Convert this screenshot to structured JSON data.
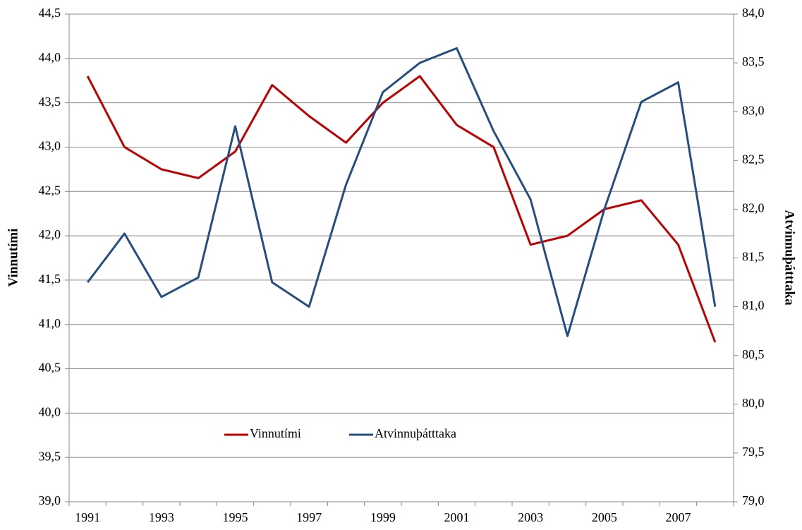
{
  "chart_data": {
    "type": "line",
    "y_label": "Vinnutími",
    "y2_label": "Atvinnuþátttaka",
    "categories": [
      "1991",
      null,
      "1993",
      null,
      "1995",
      null,
      "1997",
      null,
      "1999",
      null,
      "2001",
      null,
      "2003",
      null,
      "2005",
      null,
      "2007",
      null
    ],
    "series": [
      {
        "name": "Vinnutími",
        "color": "#c00000",
        "values": [
          43.8,
          43.0,
          42.75,
          42.65,
          42.95,
          43.7,
          43.35,
          43.05,
          43.5,
          43.8,
          43.25,
          43.0,
          41.9,
          42.0,
          42.3,
          42.4,
          41.9,
          40.8
        ]
      },
      {
        "name": "Atvinnuþátttaka",
        "color": "#254e82",
        "axis": "y2",
        "values": [
          81.25,
          81.75,
          81.1,
          81.3,
          82.85,
          81.25,
          81.0,
          82.25,
          83.2,
          83.5,
          83.65,
          82.8,
          82.1,
          80.7,
          82.0,
          83.1,
          83.3,
          81.0
        ]
      }
    ],
    "ylim": [
      39.0,
      44.5
    ],
    "yticks": [
      {
        "value": 39.0,
        "label": "39,0"
      },
      {
        "value": 39.5,
        "label": "39,5"
      },
      {
        "value": 40.0,
        "label": "40,0"
      },
      {
        "value": 40.5,
        "label": "40,5"
      },
      {
        "value": 41.0,
        "label": "41,0"
      },
      {
        "value": 41.5,
        "label": "41,5"
      },
      {
        "value": 42.0,
        "label": "42,0"
      },
      {
        "value": 42.5,
        "label": "42,5"
      },
      {
        "value": 43.0,
        "label": "43,0"
      },
      {
        "value": 43.5,
        "label": "43,5"
      },
      {
        "value": 44.0,
        "label": "44,0"
      },
      {
        "value": 44.5,
        "label": "44,5"
      }
    ],
    "y2lim": [
      79.0,
      84.0
    ],
    "y2ticks": [
      {
        "value": 79.0,
        "label": "79,0"
      },
      {
        "value": 79.5,
        "label": "79,5"
      },
      {
        "value": 80.0,
        "label": "80,0"
      },
      {
        "value": 80.5,
        "label": "80,5"
      },
      {
        "value": 81.0,
        "label": "81,0"
      },
      {
        "value": 81.5,
        "label": "81,5"
      },
      {
        "value": 82.0,
        "label": "82,0"
      },
      {
        "value": 82.5,
        "label": "82,5"
      },
      {
        "value": 83.0,
        "label": "83,0"
      },
      {
        "value": 83.5,
        "label": "83,5"
      },
      {
        "value": 84.0,
        "label": "84,0"
      }
    ],
    "grid": true
  }
}
